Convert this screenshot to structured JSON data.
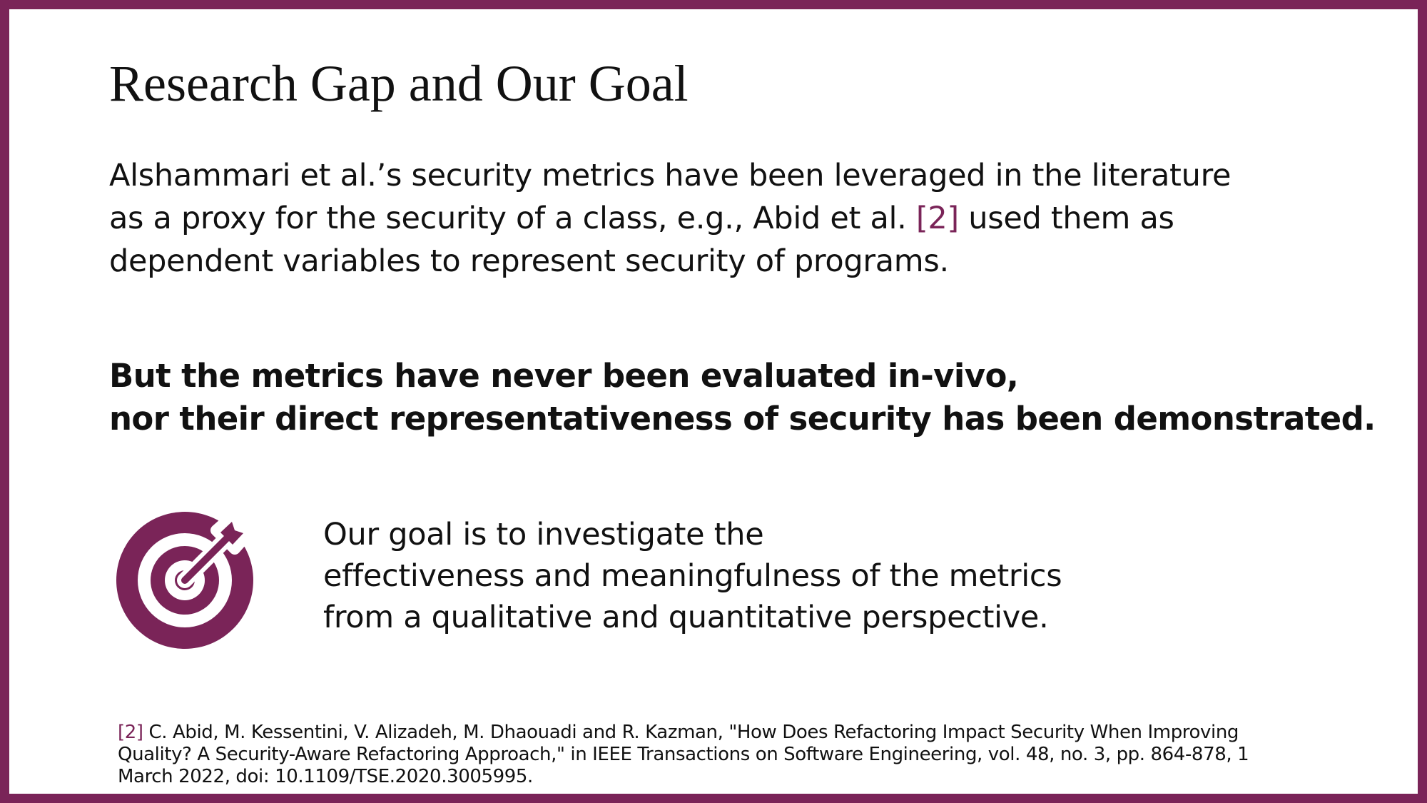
{
  "title": "Research Gap and Our Goal",
  "intro": {
    "line1": "Alshammari et al.’s security metrics have been leveraged in the literature",
    "line2_before": "as a proxy for the security of a class, e.g., Abid et al. ",
    "line2_cite": "[2]",
    "line2_after": " used them as",
    "line3": "dependent variables to represent security of programs."
  },
  "gap": {
    "line1": "But the metrics have never been evaluated in-vivo,",
    "line2": "nor their direct representativeness of security has been demonstrated."
  },
  "goal": {
    "icon": "target-icon",
    "line1": "Our goal is to investigate the",
    "line2": "effectiveness and meaningfulness of the metrics",
    "line3": "from a qualitative and quantitative perspective."
  },
  "footnote": {
    "cite": "[2]",
    "line1": " C. Abid, M. Kessentini, V. Alizadeh, M. Dhaouadi and R. Kazman, \"How Does Refactoring Impact Security When Improving",
    "line2": "Quality? A Security-Aware Refactoring Approach,\" in IEEE Transactions on Software Engineering, vol. 48, no. 3, pp. 864-878, 1",
    "line3": "March 2022, doi: 10.1109/TSE.2020.3005995."
  },
  "colors": {
    "accent": "#7a2458",
    "text": "#111111",
    "background": "#ffffff"
  }
}
